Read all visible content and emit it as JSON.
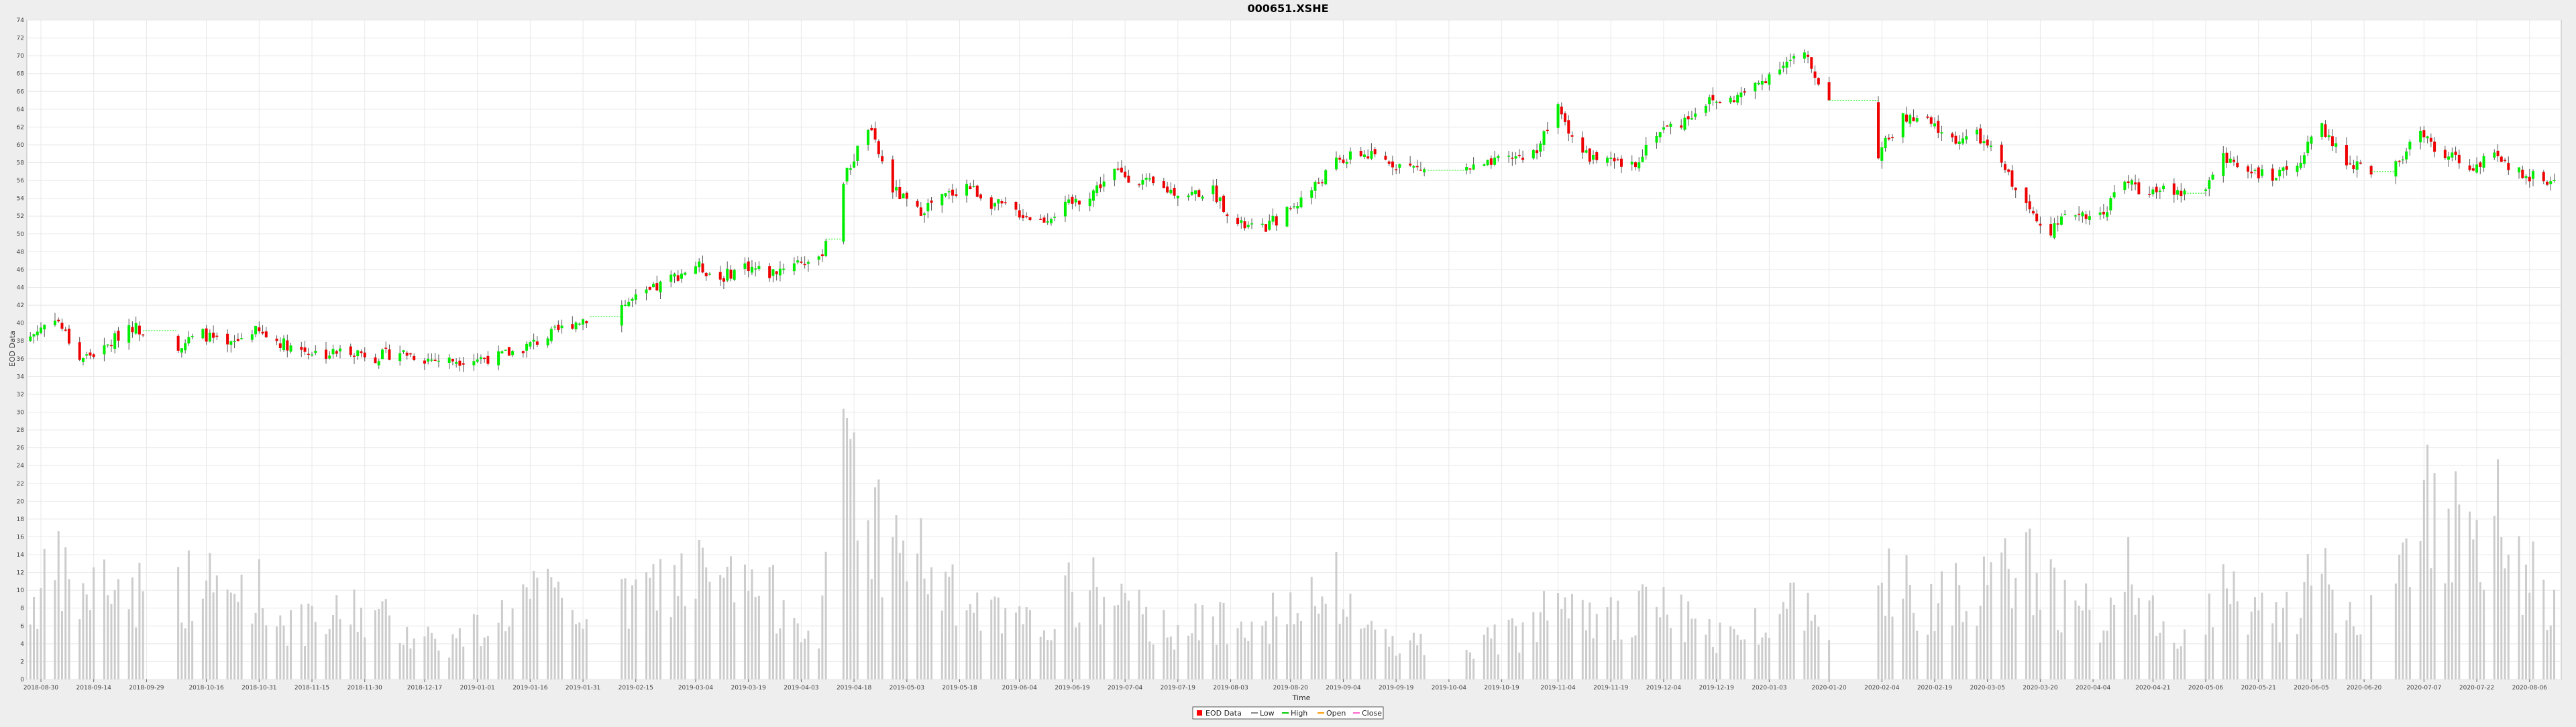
{
  "chart_data": {
    "type": "candlestick",
    "title": "000651.XSHE",
    "xlabel": "Time",
    "ylabel": "EOD Data",
    "ylim": [
      0,
      74
    ],
    "yticks": [
      0,
      2,
      4,
      6,
      8,
      10,
      12,
      14,
      16,
      18,
      20,
      22,
      24,
      26,
      28,
      30,
      32,
      34,
      36,
      38,
      40,
      42,
      44,
      46,
      48,
      50,
      52,
      54,
      56,
      58,
      60,
      62,
      64,
      66,
      68,
      70,
      72,
      74
    ],
    "xticks": [
      "2018-08-30",
      "2018-09-14",
      "2018-09-29",
      "2018-10-16",
      "2018-10-31",
      "2018-11-15",
      "2018-11-30",
      "2018-12-17",
      "2019-01-01",
      "2019-01-16",
      "2019-01-31",
      "2019-02-15",
      "2019-03-04",
      "2019-03-19",
      "2019-04-03",
      "2019-04-18",
      "2019-05-03",
      "2019-05-18",
      "2019-06-04",
      "2019-06-19",
      "2019-07-04",
      "2019-07-19",
      "2019-08-03",
      "2019-08-20",
      "2019-09-04",
      "2019-09-19",
      "2019-10-04",
      "2019-10-19",
      "2019-11-04",
      "2019-11-19",
      "2019-12-04",
      "2019-12-19",
      "2020-01-03",
      "2020-01-20",
      "2020-02-04",
      "2020-02-19",
      "2020-03-05",
      "2020-03-20",
      "2020-04-04",
      "2020-04-21",
      "2020-05-06",
      "2020-05-21",
      "2020-06-05",
      "2020-06-20",
      "2020-07-07",
      "2020-07-22",
      "2020-08-06"
    ],
    "x_start": "2018-08-26",
    "x_end": "2020-08-15",
    "price_points": [
      [
        "2018-08-27",
        38.5
      ],
      [
        "2018-09-03",
        40.8
      ],
      [
        "2018-09-10",
        36.0
      ],
      [
        "2018-09-17",
        37.0
      ],
      [
        "2018-09-24",
        39.8
      ],
      [
        "2018-10-08",
        37.5
      ],
      [
        "2018-10-15",
        38.8
      ],
      [
        "2018-10-22",
        37.2
      ],
      [
        "2018-10-29",
        39.2
      ],
      [
        "2018-11-05",
        38.0
      ],
      [
        "2018-11-12",
        37.0
      ],
      [
        "2018-11-19",
        36.5
      ],
      [
        "2018-11-26",
        37.0
      ],
      [
        "2018-12-03",
        36.2
      ],
      [
        "2018-12-10",
        36.8
      ],
      [
        "2018-12-17",
        36.0
      ],
      [
        "2018-12-24",
        35.8
      ],
      [
        "2019-01-07",
        36.2
      ],
      [
        "2019-01-14",
        37.2
      ],
      [
        "2019-01-21",
        38.5
      ],
      [
        "2019-01-28",
        40.0
      ],
      [
        "2019-02-11",
        42.0
      ],
      [
        "2019-02-18",
        43.2
      ],
      [
        "2019-02-25",
        45.0
      ],
      [
        "2019-03-04",
        46.5
      ],
      [
        "2019-03-11",
        45.0
      ],
      [
        "2019-03-18",
        46.5
      ],
      [
        "2019-03-25",
        45.5
      ],
      [
        "2019-04-01",
        47.0
      ],
      [
        "2019-04-08",
        46.8
      ],
      [
        "2019-04-15",
        56.0
      ],
      [
        "2019-04-22",
        62.0
      ],
      [
        "2019-04-29",
        55.0
      ],
      [
        "2019-05-06",
        52.5
      ],
      [
        "2019-05-13",
        54.0
      ],
      [
        "2019-05-20",
        55.5
      ],
      [
        "2019-05-27",
        53.5
      ],
      [
        "2019-06-03",
        52.5
      ],
      [
        "2019-06-10",
        51.5
      ],
      [
        "2019-06-17",
        53.0
      ],
      [
        "2019-06-24",
        54.5
      ],
      [
        "2019-07-01",
        57.0
      ],
      [
        "2019-07-08",
        56.0
      ],
      [
        "2019-07-15",
        55.0
      ],
      [
        "2019-07-22",
        54.5
      ],
      [
        "2019-07-29",
        54.8
      ],
      [
        "2019-08-05",
        51.0
      ],
      [
        "2019-08-12",
        50.5
      ],
      [
        "2019-08-19",
        52.5
      ],
      [
        "2019-08-26",
        55.0
      ],
      [
        "2019-09-02",
        58.0
      ],
      [
        "2019-09-09",
        59.0
      ],
      [
        "2019-09-16",
        58.2
      ],
      [
        "2019-09-23",
        57.5
      ],
      [
        "2019-09-30",
        57.0
      ],
      [
        "2019-10-14",
        57.5
      ],
      [
        "2019-10-21",
        58.5
      ],
      [
        "2019-10-28",
        59.0
      ],
      [
        "2019-11-04",
        64.0
      ],
      [
        "2019-11-11",
        59.0
      ],
      [
        "2019-11-18",
        58.0
      ],
      [
        "2019-11-25",
        57.5
      ],
      [
        "2019-12-02",
        61.5
      ],
      [
        "2019-12-09",
        62.5
      ],
      [
        "2019-12-16",
        64.8
      ],
      [
        "2019-12-23",
        65.0
      ],
      [
        "2019-12-30",
        66.5
      ],
      [
        "2020-01-06",
        69.0
      ],
      [
        "2020-01-13",
        70.0
      ],
      [
        "2020-01-20",
        65.0
      ],
      [
        "2020-02-03",
        59.0
      ],
      [
        "2020-02-10",
        63.0
      ],
      [
        "2020-02-17",
        62.5
      ],
      [
        "2020-02-24",
        60.5
      ],
      [
        "2020-03-02",
        61.0
      ],
      [
        "2020-03-09",
        58.0
      ],
      [
        "2020-03-16",
        53.0
      ],
      [
        "2020-03-23",
        50.5
      ],
      [
        "2020-03-30",
        52.5
      ],
      [
        "2020-04-06",
        52.0
      ],
      [
        "2020-04-13",
        56.0
      ],
      [
        "2020-04-20",
        54.5
      ],
      [
        "2020-04-27",
        55.0
      ],
      [
        "2020-05-04",
        54.0
      ],
      [
        "2020-05-11",
        58.5
      ],
      [
        "2020-05-18",
        57.5
      ],
      [
        "2020-05-25",
        56.0
      ],
      [
        "2020-06-01",
        58.0
      ],
      [
        "2020-06-08",
        62.0
      ],
      [
        "2020-06-15",
        58.0
      ],
      [
        "2020-06-22",
        57.0
      ],
      [
        "2020-06-29",
        58.0
      ],
      [
        "2020-07-06",
        61.0
      ],
      [
        "2020-07-13",
        59.0
      ],
      [
        "2020-07-20",
        57.5
      ],
      [
        "2020-07-27",
        58.5
      ],
      [
        "2020-08-03",
        57.0
      ],
      [
        "2020-08-10",
        56.0
      ]
    ],
    "volume_points": [
      [
        "2018-08-27",
        8
      ],
      [
        "2018-09-03",
        12
      ],
      [
        "2018-09-10",
        9
      ],
      [
        "2018-09-17",
        11
      ],
      [
        "2018-09-24",
        10
      ],
      [
        "2018-10-08",
        10
      ],
      [
        "2018-10-15",
        11
      ],
      [
        "2018-10-22",
        9
      ],
      [
        "2018-10-29",
        11
      ],
      [
        "2018-11-05",
        7
      ],
      [
        "2018-11-12",
        6
      ],
      [
        "2018-11-19",
        6
      ],
      [
        "2018-11-26",
        8
      ],
      [
        "2018-12-03",
        7
      ],
      [
        "2018-12-10",
        6
      ],
      [
        "2018-12-17",
        5
      ],
      [
        "2018-12-24",
        4
      ],
      [
        "2019-01-07",
        7
      ],
      [
        "2019-01-14",
        9
      ],
      [
        "2019-01-21",
        9
      ],
      [
        "2019-01-28",
        8
      ],
      [
        "2019-02-11",
        8
      ],
      [
        "2019-02-18",
        10
      ],
      [
        "2019-02-25",
        11
      ],
      [
        "2019-03-04",
        12
      ],
      [
        "2019-03-11",
        10
      ],
      [
        "2019-03-18",
        11
      ],
      [
        "2019-03-25",
        9
      ],
      [
        "2019-04-01",
        9
      ],
      [
        "2019-04-08",
        3
      ],
      [
        "2019-04-15",
        30
      ],
      [
        "2019-04-22",
        18
      ],
      [
        "2019-04-29",
        15
      ],
      [
        "2019-05-06",
        14
      ],
      [
        "2019-05-13",
        10
      ],
      [
        "2019-05-20",
        8
      ],
      [
        "2019-05-27",
        7
      ],
      [
        "2019-06-03",
        6
      ],
      [
        "2019-06-10",
        6
      ],
      [
        "2019-06-17",
        9
      ],
      [
        "2019-06-24",
        10
      ],
      [
        "2019-07-01",
        9
      ],
      [
        "2019-07-08",
        7
      ],
      [
        "2019-07-15",
        6
      ],
      [
        "2019-07-22",
        6
      ],
      [
        "2019-07-29",
        6
      ],
      [
        "2019-08-05",
        8
      ],
      [
        "2019-08-12",
        7
      ],
      [
        "2019-08-19",
        7
      ],
      [
        "2019-08-26",
        8
      ],
      [
        "2019-09-02",
        10
      ],
      [
        "2019-09-09",
        6
      ],
      [
        "2019-09-16",
        5
      ],
      [
        "2019-09-23",
        4
      ],
      [
        "2019-09-30",
        4
      ],
      [
        "2019-10-14",
        4
      ],
      [
        "2019-10-21",
        5
      ],
      [
        "2019-10-28",
        6
      ],
      [
        "2019-11-04",
        14
      ],
      [
        "2019-11-11",
        9
      ],
      [
        "2019-11-18",
        7
      ],
      [
        "2019-11-25",
        6
      ],
      [
        "2019-12-02",
        10
      ],
      [
        "2019-12-09",
        7
      ],
      [
        "2019-12-16",
        5
      ],
      [
        "2019-12-23",
        5
      ],
      [
        "2019-12-30",
        6
      ],
      [
        "2020-01-06",
        9
      ],
      [
        "2020-01-13",
        8
      ],
      [
        "2020-01-20",
        8
      ],
      [
        "2020-02-03",
        14
      ],
      [
        "2020-02-10",
        10
      ],
      [
        "2020-02-17",
        9
      ],
      [
        "2020-02-24",
        11
      ],
      [
        "2020-03-02",
        10
      ],
      [
        "2020-03-09",
        11
      ],
      [
        "2020-03-16",
        13
      ],
      [
        "2020-03-23",
        10
      ],
      [
        "2020-03-30",
        8
      ],
      [
        "2020-04-06",
        7
      ],
      [
        "2020-04-13",
        12
      ],
      [
        "2020-04-20",
        7
      ],
      [
        "2020-04-27",
        6
      ],
      [
        "2020-05-04",
        6
      ],
      [
        "2020-05-11",
        11
      ],
      [
        "2020-05-18",
        8
      ],
      [
        "2020-05-25",
        7
      ],
      [
        "2020-06-01",
        9
      ],
      [
        "2020-06-08",
        11
      ],
      [
        "2020-06-15",
        7
      ],
      [
        "2020-06-22",
        7
      ],
      [
        "2020-06-29",
        8
      ],
      [
        "2020-07-06",
        22
      ],
      [
        "2020-07-13",
        19
      ],
      [
        "2020-07-20",
        14
      ],
      [
        "2020-07-27",
        18
      ],
      [
        "2020-08-03",
        12
      ],
      [
        "2020-08-10",
        10
      ]
    ],
    "gaps": [
      [
        "2018-09-28",
        "2018-10-08"
      ],
      [
        "2019-02-02",
        "2019-02-11"
      ],
      [
        "2019-04-10",
        "2019-04-15"
      ],
      [
        "2019-09-28",
        "2019-10-09"
      ],
      [
        "2020-01-20",
        "2020-02-03"
      ],
      [
        "2020-04-30",
        "2020-05-06"
      ],
      [
        "2020-06-22",
        "2020-06-29"
      ]
    ],
    "grid": true,
    "legend": {
      "position": "bottom-center",
      "entries": [
        {
          "label": "EOD Data",
          "color": "#ff0000",
          "style": "box"
        },
        {
          "label": "Low",
          "color": "#888888",
          "style": "line"
        },
        {
          "label": "High",
          "color": "#00cc00",
          "style": "line"
        },
        {
          "label": "Open",
          "color": "#ff9900",
          "style": "line"
        },
        {
          "label": "Close",
          "color": "#ff66cc",
          "style": "line"
        }
      ]
    },
    "colors": {
      "up": "#00ee00",
      "down": "#ee0000",
      "volume": "#cccccc",
      "wick": "#555555",
      "plot_bg": "#ffffff",
      "grid": "#e8e8e8"
    }
  }
}
